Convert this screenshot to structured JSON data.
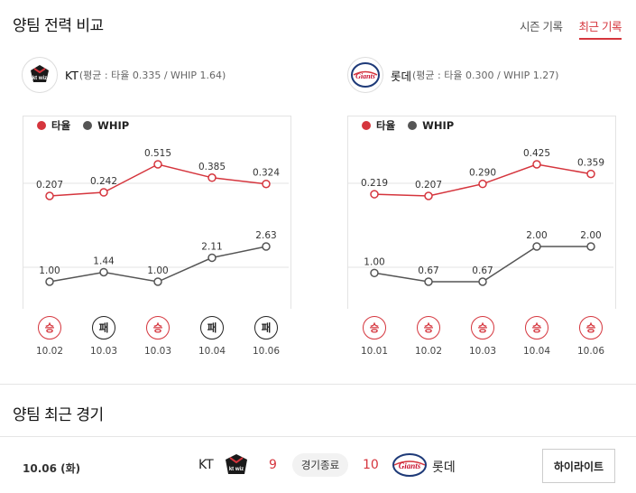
{
  "comparison": {
    "title": "양팀 전력 비교",
    "tabs": [
      {
        "label": "시즌 기록",
        "active": false
      },
      {
        "label": "최근 기록",
        "active": true
      }
    ]
  },
  "teams": [
    {
      "name": "KT",
      "stats_text": "(평균 : 타율 0.335 / WHIP 1.64)",
      "logo_text": "kt wiz",
      "chart_data": {
        "type": "line",
        "legend": [
          "타율",
          "WHIP"
        ],
        "legend_position": "top-left",
        "categories": [
          "10.02",
          "10.03",
          "10.03",
          "10.04",
          "10.06"
        ],
        "results": [
          "승",
          "패",
          "승",
          "패",
          "패"
        ],
        "series": [
          {
            "name": "타율",
            "color": "#d5353d",
            "values": [
              0.207,
              0.242,
              0.515,
              0.385,
              0.324
            ],
            "labels": [
              "0.207",
              "0.242",
              "0.515",
              "0.385",
              "0.324"
            ]
          },
          {
            "name": "WHIP",
            "color": "#555555",
            "values": [
              1.0,
              1.44,
              1.0,
              2.11,
              2.63
            ],
            "labels": [
              "1.00",
              "1.44",
              "1.00",
              "2.11",
              "2.63"
            ]
          }
        ]
      }
    },
    {
      "name": "롯데",
      "stats_text": "(평균 : 타율 0.300 / WHIP 1.27)",
      "logo_text": "Giants",
      "chart_data": {
        "type": "line",
        "legend": [
          "타율",
          "WHIP"
        ],
        "legend_position": "top-left",
        "categories": [
          "10.01",
          "10.02",
          "10.03",
          "10.04",
          "10.06"
        ],
        "results": [
          "승",
          "승",
          "승",
          "승",
          "승"
        ],
        "series": [
          {
            "name": "타율",
            "color": "#d5353d",
            "values": [
              0.219,
              0.207,
              0.29,
              0.425,
              0.359
            ],
            "labels": [
              "0.219",
              "0.207",
              "0.290",
              "0.425",
              "0.359"
            ]
          },
          {
            "name": "WHIP",
            "color": "#555555",
            "values": [
              1.0,
              0.67,
              0.67,
              2.0,
              2.0
            ],
            "labels": [
              "1.00",
              "0.67",
              "0.67",
              "2.00",
              "2.00"
            ]
          }
        ]
      }
    }
  ],
  "recent": {
    "title": "양팀 최근 경기",
    "game": {
      "date": "10.06 (화)",
      "home": "KT",
      "home_score": "9",
      "status": "경기종료",
      "away_score": "10",
      "away": "롯데",
      "highlight_label": "하이라이트"
    }
  },
  "colors": {
    "win": "#d5353d",
    "loss": "#222222",
    "accent": "#d5353d"
  }
}
